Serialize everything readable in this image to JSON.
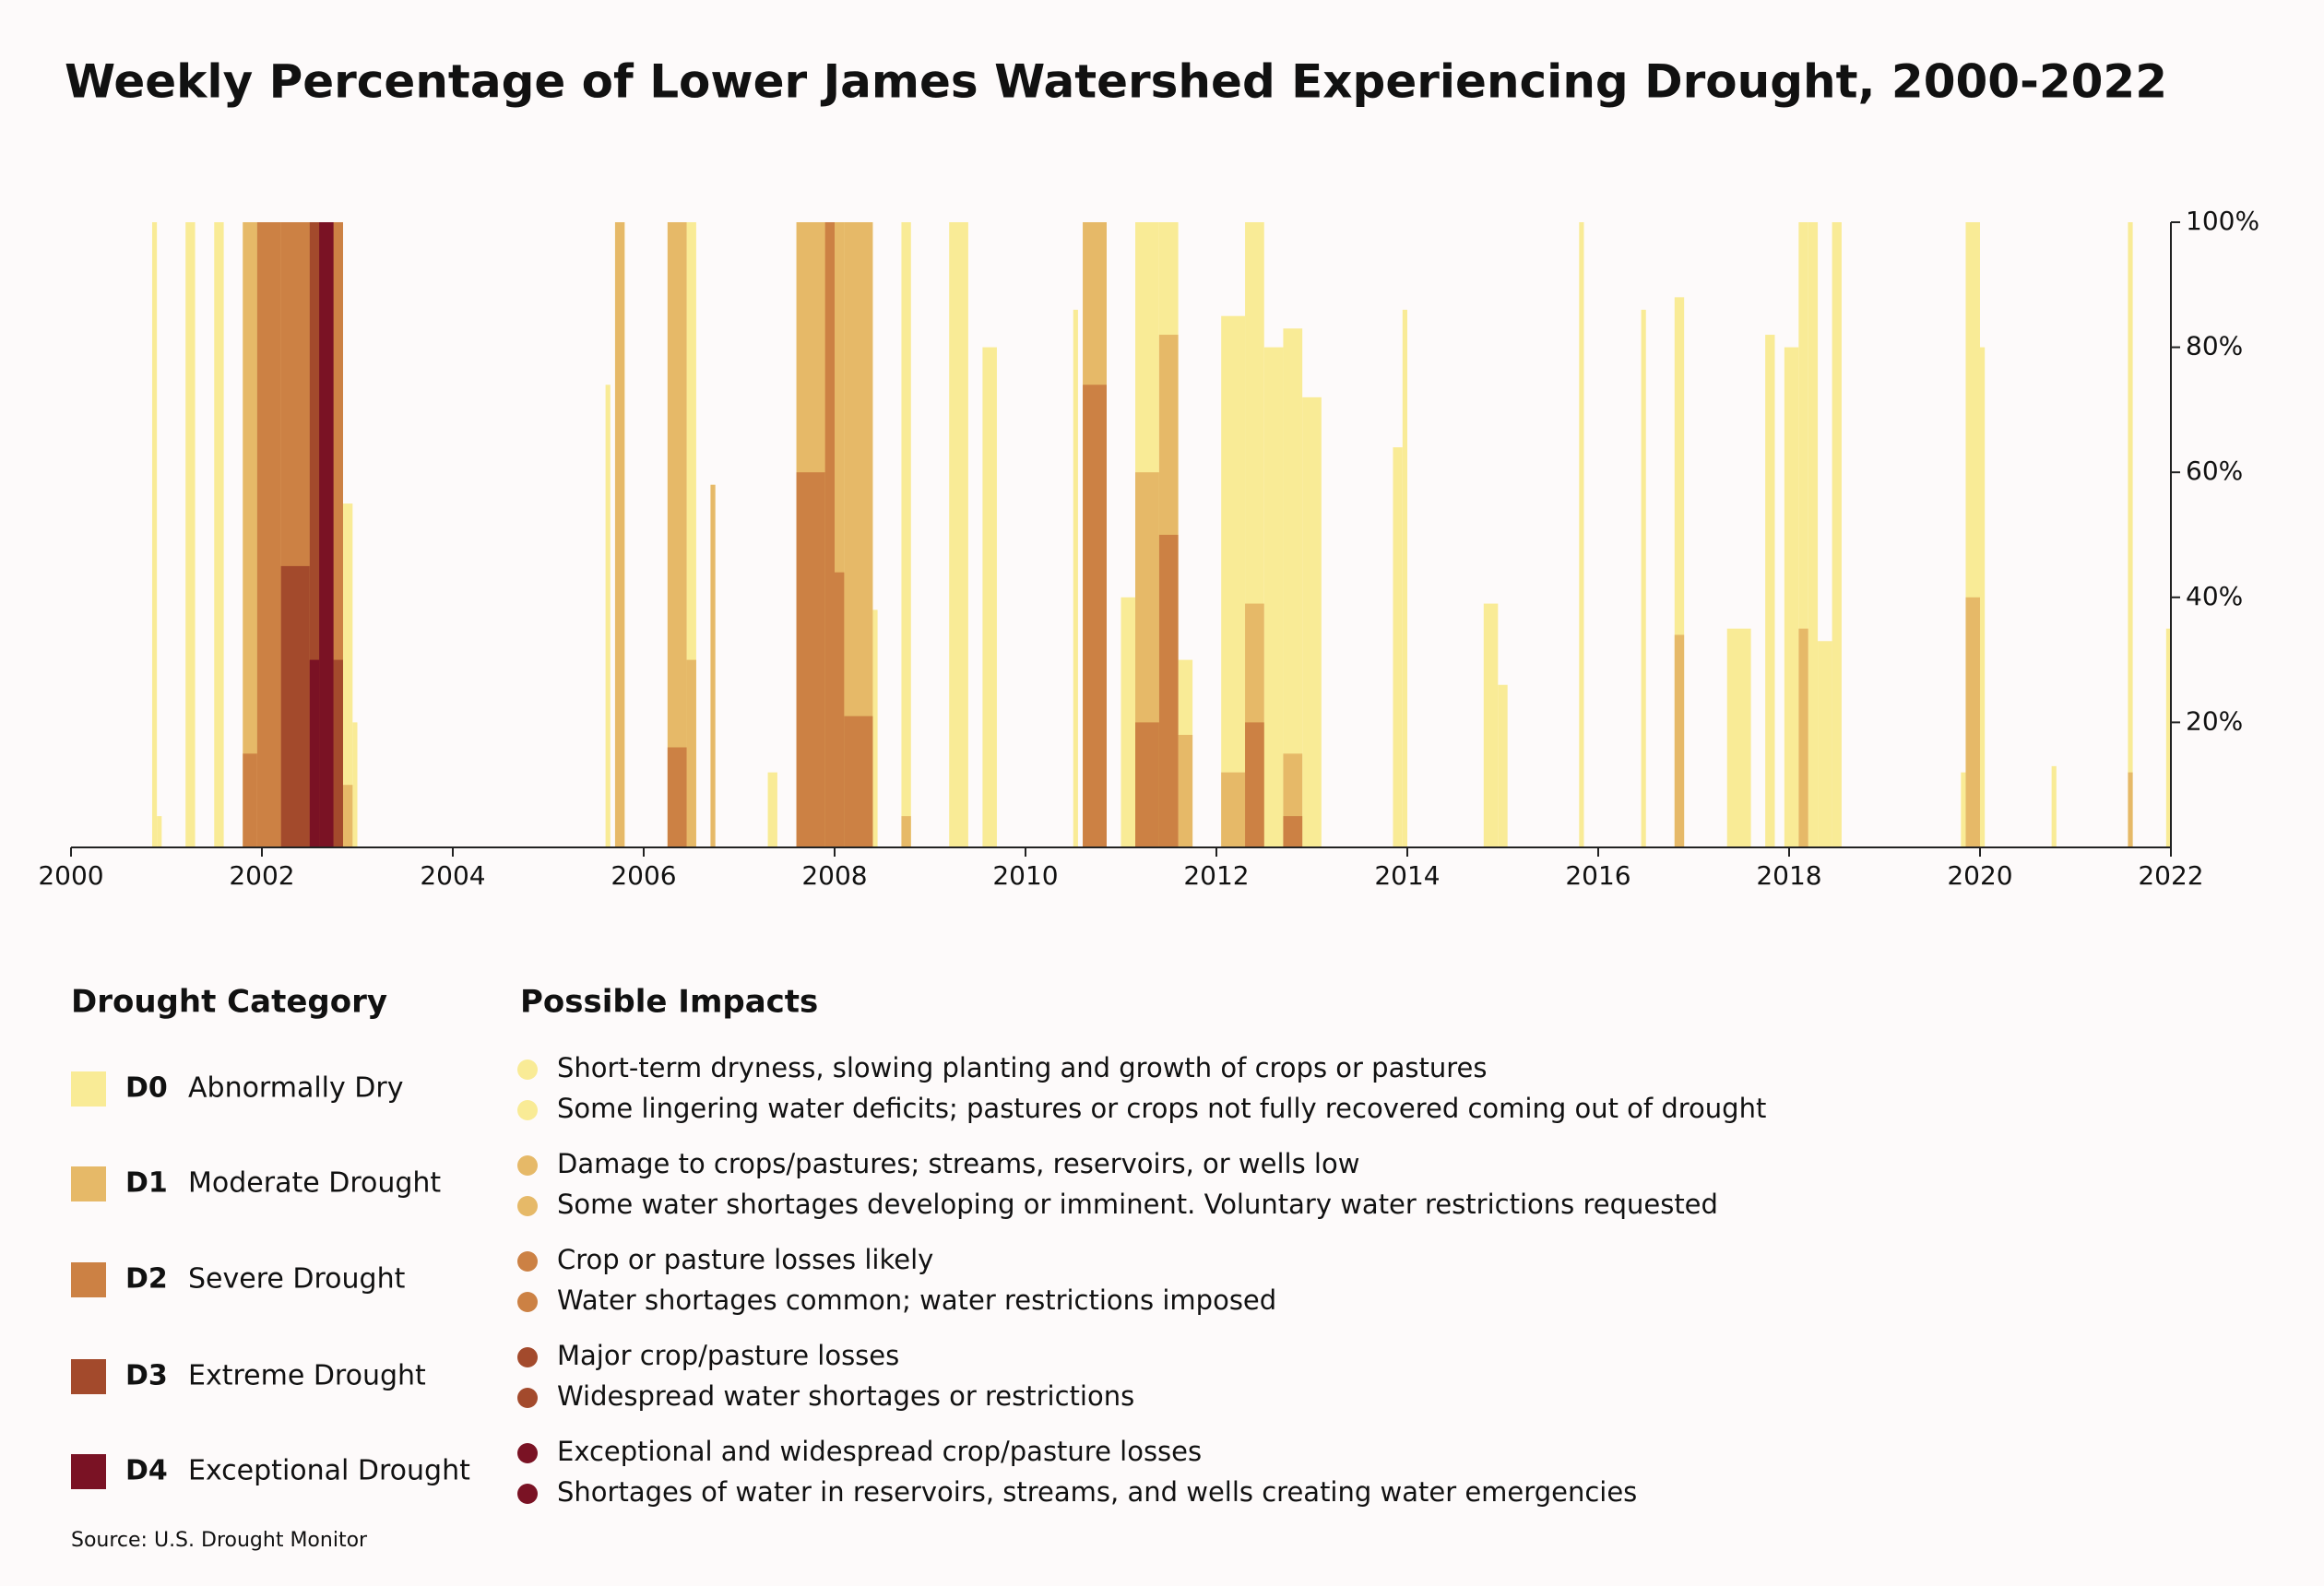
{
  "chart_data": {
    "type": "step-bar",
    "title": "Weekly Percentage of Lower James Watershed Experiencing Drought, 2000-2022",
    "xlim": [
      2000,
      2022
    ],
    "xticks": [
      2000,
      2002,
      2004,
      2006,
      2008,
      2010,
      2012,
      2014,
      2016,
      2018,
      2020,
      2022
    ],
    "ylim": [
      0,
      100
    ],
    "yticks": [
      {
        "value": 20,
        "label": "20%"
      },
      {
        "value": 40,
        "label": "40%"
      },
      {
        "value": 60,
        "label": "60%"
      },
      {
        "value": 80,
        "label": "80%"
      },
      {
        "value": 100,
        "label": "100%"
      }
    ],
    "x": [
      2000.0,
      2000.85,
      2000.9,
      2000.95,
      2001.2,
      2001.3,
      2001.5,
      2001.6,
      2001.8,
      2001.95,
      2002.2,
      2002.5,
      2002.6,
      2002.75,
      2002.85,
      2002.95,
      2003.0,
      2005.6,
      2005.65,
      2005.7,
      2005.8,
      2006.25,
      2006.45,
      2006.55,
      2006.7,
      2006.75,
      2007.3,
      2007.4,
      2007.6,
      2007.9,
      2008.0,
      2008.1,
      2008.4,
      2008.45,
      2008.7,
      2008.8,
      2009.2,
      2009.4,
      2009.55,
      2009.7,
      2010.5,
      2010.55,
      2010.6,
      2010.85,
      2011.0,
      2011.15,
      2011.4,
      2011.6,
      2011.75,
      2012.05,
      2012.3,
      2012.5,
      2012.7,
      2012.9,
      2013.1,
      2013.85,
      2013.95,
      2014.0,
      2014.8,
      2014.95,
      2015.05,
      2015.8,
      2015.85,
      2016.45,
      2016.5,
      2016.8,
      2016.9,
      2017.35,
      2017.6,
      2017.75,
      2017.85,
      2017.95,
      2018.1,
      2018.2,
      2018.3,
      2018.45,
      2018.55,
      2019.8,
      2019.85,
      2020.0,
      2020.05,
      2020.75,
      2020.8,
      2021.55,
      2021.6,
      2021.95,
      2022.0
    ],
    "series": [
      {
        "name": "Abnormally Dry",
        "code": "D0",
        "color": "#f9eb96",
        "impacts": [
          "Short-term dryness, slowing planting and growth of crops or pastures",
          "Some lingering water deficits; pastures or crops not fully recovered coming out of drought"
        ],
        "values": [
          0,
          100,
          5,
          0,
          100,
          0,
          100,
          0,
          100,
          100,
          100,
          100,
          100,
          100,
          55,
          20,
          0,
          74,
          0,
          100,
          0,
          100,
          100,
          0,
          58,
          0,
          12,
          0,
          100,
          100,
          100,
          100,
          38,
          0,
          100,
          0,
          100,
          0,
          80,
          0,
          86,
          0,
          100,
          0,
          40,
          100,
          100,
          30,
          0,
          85,
          100,
          80,
          83,
          72,
          0,
          64,
          86,
          0,
          39,
          26,
          0,
          100,
          0,
          86,
          0,
          88,
          0,
          35,
          0,
          82,
          0,
          80,
          100,
          100,
          33,
          100,
          0,
          12,
          100,
          80,
          0,
          13,
          0,
          100,
          0,
          35,
          0
        ]
      },
      {
        "name": "Moderate Drought",
        "code": "D1",
        "color": "#e6b968",
        "impacts": [
          "Damage to crops/pastures; streams, reservoirs, or wells low",
          "Some water shortages developing or imminent. Voluntary water restrictions requested"
        ],
        "values": [
          0,
          0,
          0,
          0,
          0,
          0,
          0,
          0,
          100,
          100,
          100,
          100,
          100,
          100,
          10,
          0,
          0,
          0,
          0,
          100,
          0,
          100,
          30,
          0,
          58,
          0,
          0,
          0,
          100,
          100,
          100,
          100,
          0,
          0,
          5,
          0,
          0,
          0,
          0,
          0,
          0,
          0,
          100,
          0,
          0,
          60,
          82,
          18,
          0,
          12,
          39,
          0,
          15,
          0,
          0,
          0,
          0,
          0,
          0,
          0,
          0,
          0,
          0,
          0,
          0,
          34,
          0,
          0,
          0,
          0,
          0,
          0,
          35,
          0,
          0,
          0,
          0,
          0,
          40,
          0,
          0,
          0,
          0,
          12,
          0,
          0,
          0
        ]
      },
      {
        "name": "Severe Drought",
        "code": "D2",
        "color": "#cc8144",
        "impacts": [
          "Crop or pasture losses likely",
          "Water shortages common; water restrictions imposed"
        ],
        "values": [
          0,
          0,
          0,
          0,
          0,
          0,
          0,
          0,
          15,
          100,
          100,
          100,
          100,
          100,
          0,
          0,
          0,
          0,
          0,
          0,
          0,
          16,
          0,
          0,
          0,
          0,
          0,
          0,
          60,
          100,
          44,
          21,
          0,
          0,
          0,
          0,
          0,
          0,
          0,
          0,
          0,
          0,
          74,
          0,
          0,
          20,
          50,
          0,
          0,
          0,
          20,
          0,
          5,
          0,
          0,
          0,
          0,
          0,
          0,
          0,
          0,
          0,
          0,
          0,
          0,
          0,
          0,
          0,
          0,
          0,
          0,
          0,
          0,
          0,
          0,
          0,
          0,
          0,
          0,
          0,
          0,
          0,
          0,
          0,
          0,
          0,
          0
        ]
      },
      {
        "name": "Extreme Drought",
        "code": "D3",
        "color": "#a34a2c",
        "impacts": [
          "Major crop/pasture losses",
          "Widespread water shortages or restrictions"
        ],
        "values": [
          0,
          0,
          0,
          0,
          0,
          0,
          0,
          0,
          0,
          0,
          45,
          100,
          100,
          30,
          0,
          0,
          0,
          0,
          0,
          0,
          0,
          0,
          0,
          0,
          0,
          0,
          0,
          0,
          0,
          0,
          0,
          0,
          0,
          0,
          0,
          0,
          0,
          0,
          0,
          0,
          0,
          0,
          0,
          0,
          0,
          0,
          0,
          0,
          0,
          0,
          0,
          0,
          0,
          0,
          0,
          0,
          0,
          0,
          0,
          0,
          0,
          0,
          0,
          0,
          0,
          0,
          0,
          0,
          0,
          0,
          0,
          0,
          0,
          0,
          0,
          0,
          0,
          0,
          0,
          0,
          0,
          0,
          0,
          0,
          0,
          0,
          0
        ]
      },
      {
        "name": "Exceptional Drought",
        "code": "D4",
        "color": "#7a1224",
        "impacts": [
          "Exceptional and widespread crop/pasture losses",
          "Shortages of water in reservoirs, streams, and wells creating water emergencies"
        ],
        "values": [
          0,
          0,
          0,
          0,
          0,
          0,
          0,
          0,
          0,
          0,
          0,
          30,
          100,
          0,
          0,
          0,
          0,
          0,
          0,
          0,
          0,
          0,
          0,
          0,
          0,
          0,
          0,
          0,
          0,
          0,
          0,
          0,
          0,
          0,
          0,
          0,
          0,
          0,
          0,
          0,
          0,
          0,
          0,
          0,
          0,
          0,
          0,
          0,
          0,
          0,
          0,
          0,
          0,
          0,
          0,
          0,
          0,
          0,
          0,
          0,
          0,
          0,
          0,
          0,
          0,
          0,
          0,
          0,
          0,
          0,
          0,
          0,
          0,
          0,
          0,
          0,
          0,
          0,
          0,
          0,
          0,
          0,
          0,
          0,
          0,
          0,
          0
        ]
      }
    ],
    "legend_title": "Drought Category",
    "impacts_title": "Possible Impacts",
    "source": "Source: U.S. Drought Monitor"
  }
}
